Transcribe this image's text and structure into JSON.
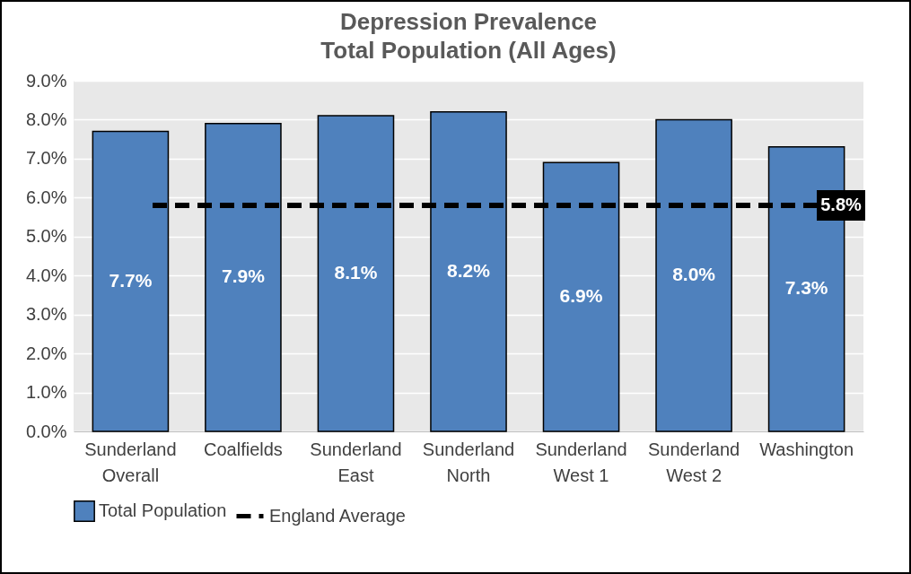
{
  "chart_data": {
    "type": "bar",
    "title": "Depression Prevalence",
    "subtitle": "Total Population (All Ages)",
    "categories": [
      "Sunderland Overall",
      "Coalfields",
      "Sunderland East",
      "Sunderland North",
      "Sunderland West 1",
      "Sunderland West 2",
      "Washington"
    ],
    "series": [
      {
        "name": "Total Population",
        "color": "#4f81bd",
        "values": [
          7.7,
          7.9,
          8.1,
          8.2,
          6.9,
          8.0,
          7.3
        ]
      }
    ],
    "value_labels": [
      "7.7%",
      "7.9%",
      "8.1%",
      "8.2%",
      "6.9%",
      "8.0%",
      "7.3%"
    ],
    "ref_lines": [
      {
        "axis": "y",
        "value": 5.8,
        "label": "England Average",
        "color": "#000000",
        "line_style": "dashed"
      }
    ],
    "annotations": [
      {
        "text": "5.8%",
        "y": 5.8
      }
    ],
    "ylim": [
      0,
      9
    ],
    "yticks": [
      {
        "value": 0,
        "label": "0.0%"
      },
      {
        "value": 1,
        "label": "1.0%"
      },
      {
        "value": 2,
        "label": "2.0%"
      },
      {
        "value": 3,
        "label": "3.0%"
      },
      {
        "value": 4,
        "label": "4.0%"
      },
      {
        "value": 5,
        "label": "5.0%"
      },
      {
        "value": 6,
        "label": "6.0%"
      },
      {
        "value": 7,
        "label": "7.0%"
      },
      {
        "value": 8,
        "label": "8.0%"
      },
      {
        "value": 9,
        "label": "9.0%"
      }
    ],
    "grid": true,
    "legend": "bottom"
  }
}
